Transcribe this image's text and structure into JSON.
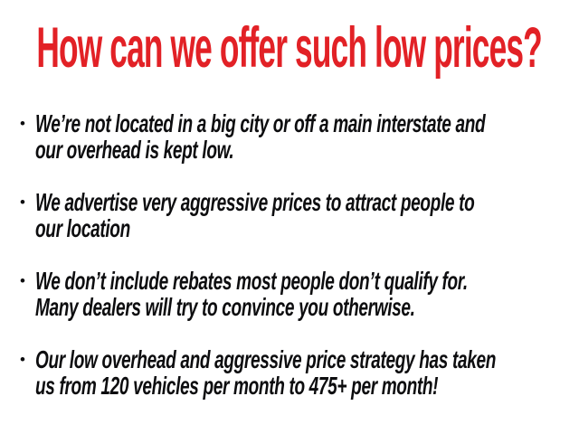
{
  "colors": {
    "accent": "#e22126",
    "text": "#0d0d0f"
  },
  "slide": {
    "title": "How can we offer such low prices?",
    "bullet_glyph": "•",
    "bullets": [
      {
        "lines": [
          "We’re not located in a big city or off a main interstate and",
          "our overhead is kept low."
        ]
      },
      {
        "lines": [
          "We advertise very aggressive prices to attract people to",
          "our location"
        ]
      },
      {
        "lines": [
          "We don’t include rebates most people don’t qualify for.",
          "Many dealers will try to convince you otherwise."
        ]
      },
      {
        "lines": [
          "Our low overhead and aggressive price strategy has taken",
          "us from 120 vehicles per month to 475+ per month!"
        ]
      }
    ]
  }
}
